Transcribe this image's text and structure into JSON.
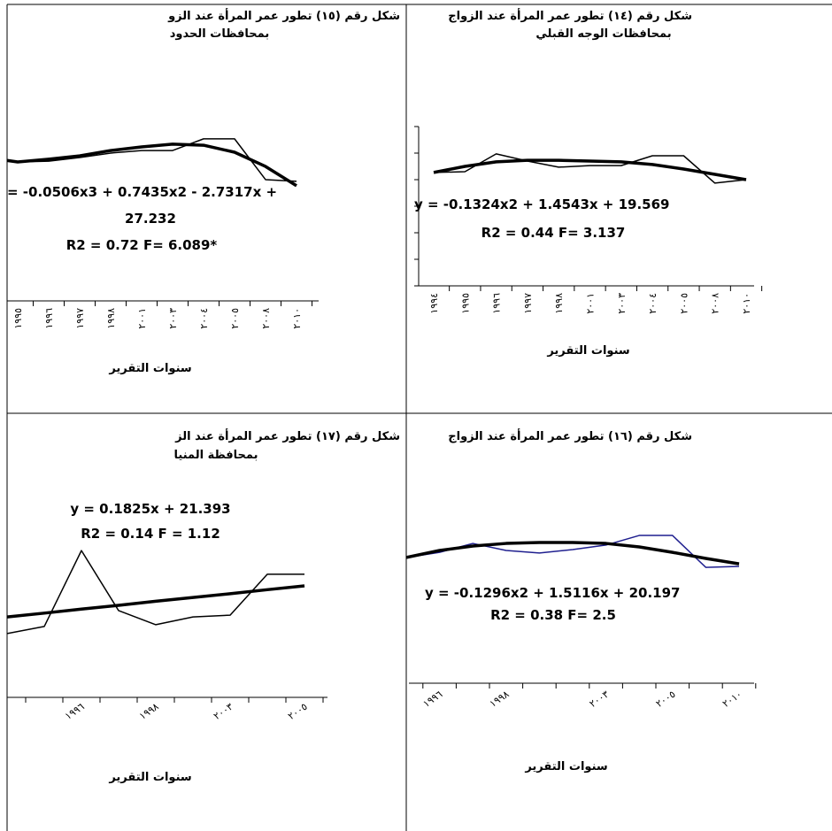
{
  "chart_data": [
    {
      "type": "line",
      "title": "شكل رقم (١٥) تطور عمر المرأة عند الزو",
      "subtitle": "بمحافظات الحدود",
      "categories": [
        null,
        "١٩٩٥",
        "١٩٩٦",
        "١٩٩٧",
        "١٩٩٨",
        "٢٠٠١",
        "٢٠٠٣",
        "٢٠٠٤",
        "٢٠٠٥",
        "٢٠٠٨",
        "٢٠١٠"
      ],
      "series": [
        {
          "color": "#000000",
          "values": [
            24.67,
            24.54,
            24.58,
            24.75,
            24.96,
            25.08,
            25.08,
            25.63,
            25.63,
            23.71,
            23.63
          ]
        },
        {
          "color": "#000000",
          "values": [
            24.75,
            24.54,
            24.67,
            24.83,
            25.08,
            25.25,
            25.38,
            25.33,
            25.0,
            24.33,
            23.42
          ]
        }
      ],
      "annotations": [
        "= -0.0506x3 + 0.7435x2 - 2.7317x +",
        "27.232",
        "R2 = 0.72  F= 6.089*"
      ],
      "x_label": "سنوات التقرير",
      "ylim": [
        18,
        28
      ]
    },
    {
      "type": "line",
      "title": "شكل رقم (١٤) تطور عمر المرأة عند الزواج",
      "subtitle": "بمحافظات الوجه القبلي",
      "categories": [
        "١٩٩٤",
        "١٩٩٥",
        "١٩٩٦",
        "١٩٩٧",
        "١٩٩٨",
        "٢٠٠١",
        "٢٠٠٣",
        "٢٠٠٤",
        "٢٠٠٥",
        "٢٠٠٨",
        "٢٠١٠"
      ],
      "series": [
        {
          "color": "#000000",
          "values": [
            23.27,
            23.3,
            23.97,
            23.7,
            23.47,
            23.53,
            23.53,
            23.9,
            23.9,
            22.87,
            23.0
          ]
        },
        {
          "color": "#000000",
          "values": [
            23.27,
            23.5,
            23.67,
            23.73,
            23.73,
            23.7,
            23.67,
            23.57,
            23.4,
            23.2,
            23.0
          ]
        }
      ],
      "annotations": [
        "y = -0.1324x2 + 1.4543x + 19.569",
        "R2 = 0.44    F= 3.137"
      ],
      "x_label": "سنوات التقرير",
      "ylim": [
        19,
        25
      ],
      "yticks": [
        19,
        20,
        21,
        22,
        23,
        24,
        25
      ]
    },
    {
      "type": "line",
      "title": "شكل رقم (١٧) تطور عمر المرأة عند الز",
      "subtitle": "بمحافظة المنيا",
      "categories": [
        null,
        null,
        "١٩٩٦",
        null,
        "١٩٩٨",
        null,
        "٢٠٠٣",
        null,
        "٢٠٠٥"
      ],
      "series": [
        {
          "color": "#000000",
          "values": [
            20.53,
            20.81,
            23.82,
            21.44,
            20.88,
            21.19,
            21.26,
            22.88,
            22.88
          ]
        },
        {
          "color": "#000000",
          "values": [
            21.19,
            21.34,
            21.5,
            21.65,
            21.81,
            21.96,
            22.11,
            22.27,
            22.42
          ]
        }
      ],
      "annotations": [
        "y = 0.1825x + 21.393",
        "R2 = 0.14 F = 1.12"
      ],
      "x_label": "سنوات التقرير",
      "ylim": [
        18,
        26
      ]
    },
    {
      "type": "line",
      "title": "شكل رقم (١٦) تطور عمر المرأة عند الزواج",
      "categories": [
        null,
        "١٩٩٦",
        null,
        "١٩٩٨",
        null,
        null,
        "٢٠٠٣",
        null,
        "٢٠٠٥",
        null,
        "٢٠١٠"
      ],
      "series": [
        {
          "color": "#1f1f8f",
          "values": [
            23.36,
            23.58,
            23.96,
            23.66,
            23.55,
            23.7,
            23.89,
            24.3,
            24.3,
            22.94,
            22.98
          ]
        },
        {
          "color": "#000000",
          "values": [
            23.36,
            23.66,
            23.85,
            23.96,
            24.0,
            24.0,
            23.96,
            23.81,
            23.58,
            23.32,
            23.09
          ]
        }
      ],
      "annotations": [
        "y = -0.1296x2 + 1.5116x + 20.197",
        "R2 = 0.38    F= 2.5"
      ],
      "x_label": "سنوات التقرير",
      "ylim": [
        18,
        26
      ]
    }
  ]
}
